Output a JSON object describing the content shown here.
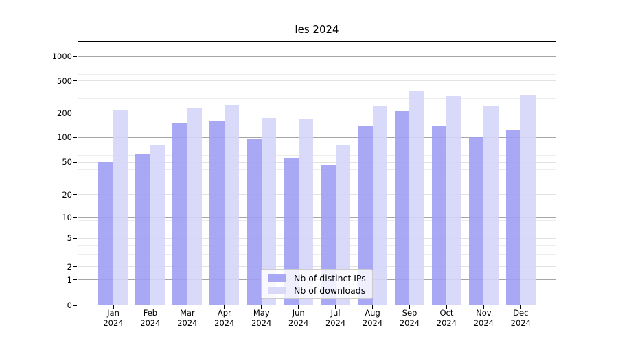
{
  "title": "les 2024",
  "chart_data": {
    "type": "bar",
    "title": "les 2024",
    "categories": [
      "Jan 2024",
      "Feb 2024",
      "Mar 2024",
      "Apr 2024",
      "May 2024",
      "Jun 2024",
      "Jul 2024",
      "Aug 2024",
      "Sep 2024",
      "Oct 2024",
      "Nov 2024",
      "Dec 2024"
    ],
    "series": [
      {
        "name": "Nb of distinct IPs",
        "color": "#9f9ff4",
        "values": [
          50,
          63,
          150,
          158,
          96,
          56,
          45,
          139,
          212,
          140,
          102,
          122
        ]
      },
      {
        "name": "Nb of downloads",
        "color": "#d5d5f8",
        "values": [
          216,
          80,
          232,
          250,
          172,
          165,
          79,
          246,
          368,
          320,
          245,
          326
        ]
      }
    ],
    "yscale": "symlog",
    "y_ticks": [
      0,
      1,
      2,
      5,
      10,
      20,
      50,
      100,
      200,
      500,
      1000
    ],
    "y_major_ticks": [
      1,
      10,
      100,
      1000
    ],
    "y_minor_gridlines": [
      3,
      4,
      6,
      7,
      8,
      9,
      30,
      40,
      60,
      70,
      80,
      90,
      300,
      400,
      600,
      700,
      800,
      900
    ],
    "ylim": [
      0,
      1500
    ],
    "xlabel": "",
    "ylabel": "",
    "grid": true,
    "legend_position": "lower center"
  },
  "colors": {
    "bar_distinct_ips": "#9f9ff4",
    "bar_downloads": "#d5d5f8",
    "grid_major": "#a6a6a6",
    "grid_labeled_minor": "#e2e2e2",
    "grid_minor": "#ececec",
    "axis": "#000000",
    "background": "#ffffff"
  }
}
